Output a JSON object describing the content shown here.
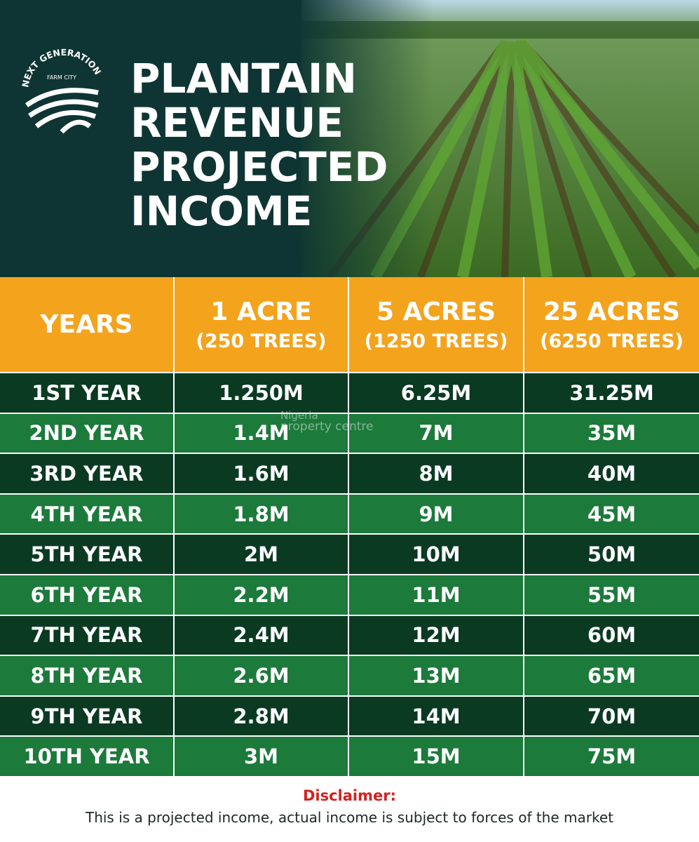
{
  "brand": {
    "line1": "NEXT GENERATION",
    "line2": "FARM CITY"
  },
  "header": {
    "title_lines": [
      "PLANTAIN",
      "REVENUE",
      "PROJECTED",
      "INCOME"
    ]
  },
  "watermark": {
    "line1": "Nigeria",
    "line2": "property centre"
  },
  "table": {
    "columns": [
      {
        "title": "YEARS"
      },
      {
        "title": "1 ACRE",
        "subtitle": "(250 TREES)"
      },
      {
        "title": "5 ACRES",
        "subtitle": "(1250 TREES)"
      },
      {
        "title": "25 ACRES",
        "subtitle": "(6250 TREES)"
      }
    ],
    "rows": [
      [
        "1ST YEAR",
        "1.250M",
        "6.25M",
        "31.25M"
      ],
      [
        "2ND YEAR",
        "1.4M",
        "7M",
        "35M"
      ],
      [
        "3RD YEAR",
        "1.6M",
        "8M",
        "40M"
      ],
      [
        "4TH YEAR",
        "1.8M",
        "9M",
        "45M"
      ],
      [
        "5TH YEAR",
        "2M",
        "10M",
        "50M"
      ],
      [
        "6TH YEAR",
        "2.2M",
        "11M",
        "55M"
      ],
      [
        "7TH YEAR",
        "2.4M",
        "12M",
        "60M"
      ],
      [
        "8TH YEAR",
        "2.6M",
        "13M",
        "65M"
      ],
      [
        "9TH YEAR",
        "2.8M",
        "14M",
        "70M"
      ],
      [
        "10TH YEAR",
        "3M",
        "15M",
        "75M"
      ]
    ]
  },
  "disclaimer": {
    "label": "Disclaimer:",
    "text": "This is a projected income, actual income is subject to forces of the market"
  }
}
